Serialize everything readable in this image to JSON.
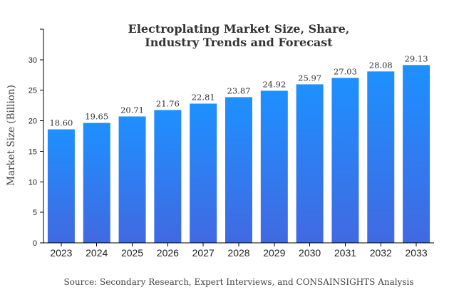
{
  "chart_data": {
    "type": "bar",
    "title": [
      "Electroplating Market Size, Share,",
      "Industry Trends and Forecast"
    ],
    "ylabel": "Market Size (Billion)",
    "xlabel": "",
    "source": "Source: Secondary Research, Expert Interviews, and CONSAINSIGHTS Analysis",
    "categories": [
      "2023",
      "2024",
      "2025",
      "2026",
      "2027",
      "2028",
      "2029",
      "2030",
      "2031",
      "2032",
      "2033"
    ],
    "values": [
      18.6,
      19.65,
      20.71,
      21.76,
      22.81,
      23.87,
      24.92,
      25.97,
      27.03,
      28.08,
      29.13
    ],
    "value_labels": [
      "18.60",
      "19.65",
      "20.71",
      "21.76",
      "22.81",
      "23.87",
      "24.92",
      "25.97",
      "27.03",
      "28.08",
      "29.13"
    ],
    "yticks": [
      0,
      5,
      10,
      15,
      20,
      25,
      30
    ],
    "ylim": [
      0,
      35
    ],
    "grid": false,
    "legend": "none",
    "colors": {
      "bar_top": "#1e90ff",
      "bar_bottom": "#4169e1",
      "axis": "#000000"
    }
  }
}
